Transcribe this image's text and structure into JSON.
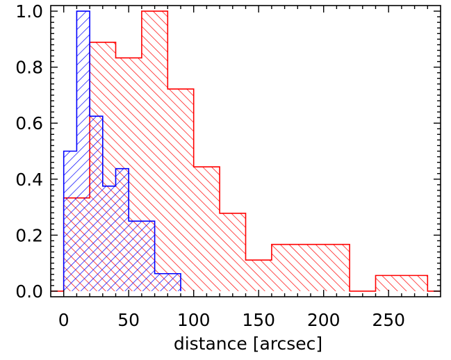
{
  "chart_data": {
    "type": "histogram",
    "title": "",
    "xlabel": "distance [arcsec]",
    "ylabel": "",
    "xlim": [
      -10,
      290
    ],
    "ylim": [
      -0.02,
      1.02
    ],
    "xticks": [
      0,
      50,
      100,
      150,
      200,
      250
    ],
    "xtick_labels": [
      "0",
      "50",
      "100",
      "150",
      "200",
      "250"
    ],
    "yticks": [
      0.0,
      0.2,
      0.4,
      0.6,
      0.8,
      1.0
    ],
    "ytick_labels": [
      "0.0",
      "0.2",
      "0.4",
      "0.6",
      "0.8",
      "1.0"
    ],
    "grid": false,
    "legend": null,
    "series": [
      {
        "color": "#ff0000",
        "hatch": "diagonal-down",
        "bins": [
          {
            "x0": -10,
            "x1": 0,
            "y": 0.0
          },
          {
            "x0": 0,
            "x1": 20,
            "y": 0.333
          },
          {
            "x0": 20,
            "x1": 40,
            "y": 0.889
          },
          {
            "x0": 40,
            "x1": 60,
            "y": 0.833
          },
          {
            "x0": 60,
            "x1": 80,
            "y": 1.0
          },
          {
            "x0": 80,
            "x1": 100,
            "y": 0.722
          },
          {
            "x0": 100,
            "x1": 120,
            "y": 0.444
          },
          {
            "x0": 120,
            "x1": 140,
            "y": 0.278
          },
          {
            "x0": 140,
            "x1": 160,
            "y": 0.111
          },
          {
            "x0": 160,
            "x1": 220,
            "y": 0.167
          },
          {
            "x0": 220,
            "x1": 240,
            "y": 0.0
          },
          {
            "x0": 240,
            "x1": 280,
            "y": 0.056
          },
          {
            "x0": 280,
            "x1": 290,
            "y": 0.0
          }
        ]
      },
      {
        "color": "#0000ff",
        "hatch": "diagonal-up",
        "bins": [
          {
            "x0": 0,
            "x1": 10,
            "y": 0.5
          },
          {
            "x0": 10,
            "x1": 20,
            "y": 1.0
          },
          {
            "x0": 20,
            "x1": 30,
            "y": 0.625
          },
          {
            "x0": 30,
            "x1": 40,
            "y": 0.375
          },
          {
            "x0": 40,
            "x1": 50,
            "y": 0.4375
          },
          {
            "x0": 50,
            "x1": 70,
            "y": 0.25
          },
          {
            "x0": 70,
            "x1": 90,
            "y": 0.0625
          }
        ]
      }
    ]
  }
}
